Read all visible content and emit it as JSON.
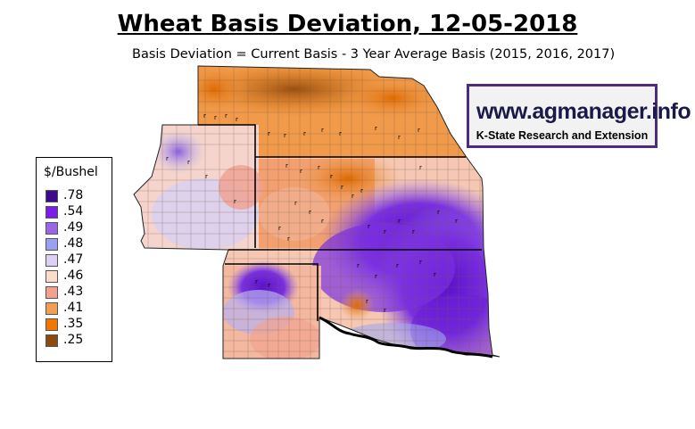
{
  "title": "Wheat Basis Deviation, 12-05-2018",
  "subtitle": "Basis Deviation = Current Basis - 3 Year Average Basis (2015, 2016, 2017)",
  "logo": {
    "url": "www.agmanager.info",
    "org": "K-State Research and Extension"
  },
  "legend": {
    "title": "$/Bushel",
    "items": [
      {
        "label": ".78",
        "color": "#3d0a8c"
      },
      {
        "label": ".54",
        "color": "#7a1ee6"
      },
      {
        "label": ".49",
        "color": "#9966e6"
      },
      {
        "label": ".48",
        "color": "#9aa0f0"
      },
      {
        "label": ".47",
        "color": "#dcd0f5"
      },
      {
        "label": ".46",
        "color": "#f8dccc"
      },
      {
        "label": ".43",
        "color": "#f2a090"
      },
      {
        "label": ".41",
        "color": "#f0a050"
      },
      {
        "label": ".35",
        "color": "#f07800"
      },
      {
        "label": ".25",
        "color": "#8a4a10"
      }
    ]
  }
}
